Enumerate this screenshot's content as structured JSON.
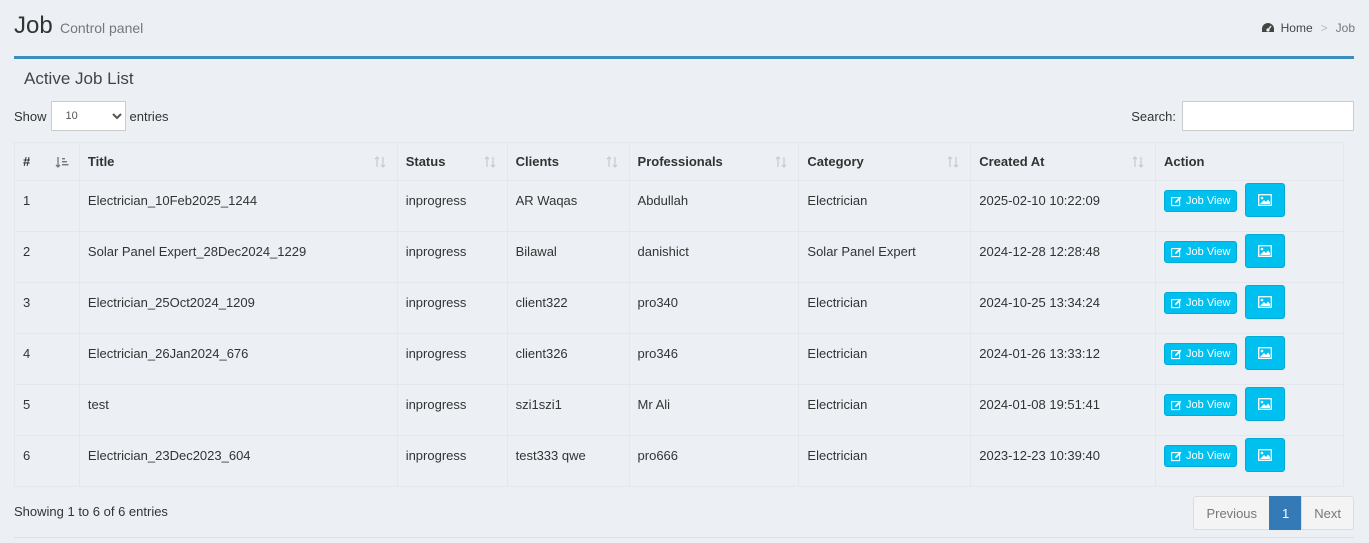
{
  "header": {
    "title": "Job",
    "subtitle": "Control panel",
    "breadcrumb": {
      "home": "Home",
      "current": "Job"
    }
  },
  "box": {
    "title": "Active Job List"
  },
  "controls": {
    "show_label": "Show",
    "entries_label": "entries",
    "page_size": "10",
    "search_label": "Search:",
    "search_value": ""
  },
  "table": {
    "columns": [
      "#",
      "Title",
      "Status",
      "Clients",
      "Professionals",
      "Category",
      "Created At",
      "Action"
    ],
    "rows": [
      {
        "num": "1",
        "title": "Electrician_10Feb2025_1244",
        "status": "inprogress",
        "client": "AR Waqas",
        "professional": "Abdullah",
        "category": "Electrician",
        "created": "2025-02-10 10:22:09"
      },
      {
        "num": "2",
        "title": "Solar Panel Expert_28Dec2024_1229",
        "status": "inprogress",
        "client": "Bilawal",
        "professional": "danishict",
        "category": "Solar Panel Expert",
        "created": "2024-12-28 12:28:48"
      },
      {
        "num": "3",
        "title": "Electrician_25Oct2024_1209",
        "status": "inprogress",
        "client": "client322",
        "professional": "pro340",
        "category": "Electrician",
        "created": "2024-10-25 13:34:24"
      },
      {
        "num": "4",
        "title": "Electrician_26Jan2024_676",
        "status": "inprogress",
        "client": "client326",
        "professional": "pro346",
        "category": "Electrician",
        "created": "2024-01-26 13:33:12"
      },
      {
        "num": "5",
        "title": "test",
        "status": "inprogress",
        "client": "szi1szi1",
        "professional": "Mr Ali",
        "category": "Electrician",
        "created": "2024-01-08 19:51:41"
      },
      {
        "num": "6",
        "title": "Electrician_23Dec2023_604",
        "status": "inprogress",
        "client": "test333 qwe",
        "professional": "pro666",
        "category": "Electrician",
        "created": "2023-12-23 10:39:40"
      }
    ],
    "action_label": "Job View"
  },
  "footer": {
    "info": "Showing 1 to 6 of 6 entries",
    "previous": "Previous",
    "page": "1",
    "next": "Next"
  },
  "colors": {
    "accent": "#3c8dbc",
    "info_button": "#00c0ef",
    "page_active": "#337ab7"
  }
}
